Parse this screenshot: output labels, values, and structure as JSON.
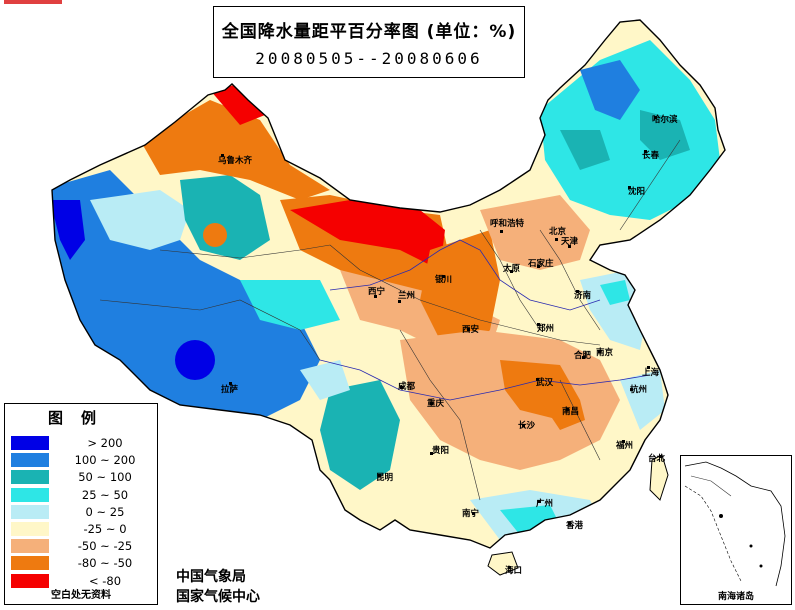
{
  "title": {
    "line1": "全国降水量距平百分率图 (单位：%)",
    "line2": "20080505--20080606"
  },
  "legend": {
    "heading": "图例",
    "items": [
      {
        "range": "> 200",
        "color": "#0000e6"
      },
      {
        "range": "100 ~ 200",
        "color": "#1f7fe0"
      },
      {
        "range": "50 ~ 100",
        "color": "#1ab3b3"
      },
      {
        "range": "25 ~ 50",
        "color": "#2ee6e6"
      },
      {
        "range": "0 ~ 25",
        "color": "#b9ecf5"
      },
      {
        "range": "-25 ~ 0",
        "color": "#fff7c8"
      },
      {
        "range": "-50 ~ -25",
        "color": "#f5b07a"
      },
      {
        "range": "-80 ~ -50",
        "color": "#ee7a10"
      },
      {
        "range": "< -80",
        "color": "#f50000"
      }
    ],
    "note": "空白处无资料"
  },
  "publisher": {
    "line1": "中国气象局",
    "line2": "国家气候中心"
  },
  "inset_label": "南海诸岛",
  "cities": [
    {
      "name": "乌鲁木齐"
    },
    {
      "name": "拉萨"
    },
    {
      "name": "西宁"
    },
    {
      "name": "兰州"
    },
    {
      "name": "银川"
    },
    {
      "name": "呼和浩特"
    },
    {
      "name": "北京"
    },
    {
      "name": "天津"
    },
    {
      "name": "太原"
    },
    {
      "name": "石家庄"
    },
    {
      "name": "济南"
    },
    {
      "name": "郑州"
    },
    {
      "name": "西安"
    },
    {
      "name": "合肥"
    },
    {
      "name": "南京"
    },
    {
      "name": "上海"
    },
    {
      "name": "杭州"
    },
    {
      "name": "武汉"
    },
    {
      "name": "成都"
    },
    {
      "name": "重庆"
    },
    {
      "name": "贵阳"
    },
    {
      "name": "昆明"
    },
    {
      "name": "长沙"
    },
    {
      "name": "南昌"
    },
    {
      "name": "福州"
    },
    {
      "name": "台北"
    },
    {
      "name": "广州"
    },
    {
      "name": "南宁"
    },
    {
      "name": "香港"
    },
    {
      "name": "海口"
    },
    {
      "name": "沈阳"
    },
    {
      "name": "长春"
    },
    {
      "name": "哈尔滨"
    }
  ]
}
